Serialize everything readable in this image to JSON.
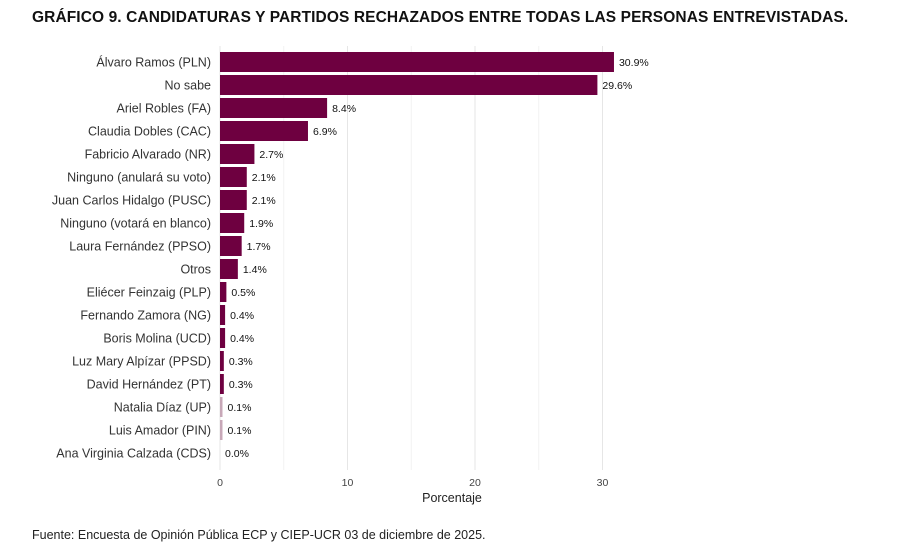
{
  "title": "GRÁFICO 9. CANDIDATURAS Y PARTIDOS RECHAZADOS ENTRE TODAS LAS PERSONAS ENTREVISTADAS.",
  "source": "Fuente: Encuesta de Opinión Pública ECP y CIEP-UCR 03 de diciembre de 2025.",
  "colors": {
    "bar": "#6e0040",
    "bar_light": "#c8a8b8",
    "grid": "#e6e6e6"
  },
  "chart_data": {
    "type": "bar",
    "orientation": "horizontal",
    "title": "GRÁFICO 9. CANDIDATURAS Y PARTIDOS RECHAZADOS ENTRE TODAS LAS PERSONAS ENTREVISTADAS.",
    "xlabel": "Porcentaje",
    "ylabel": "",
    "xlim": [
      0,
      32
    ],
    "xticks": [
      0,
      10,
      20,
      30
    ],
    "grid": true,
    "categories": [
      "Álvaro Ramos (PLN)",
      "No sabe",
      "Ariel Robles (FA)",
      "Claudia Dobles (CAC)",
      "Fabricio Alvarado (NR)",
      "Ninguno (anulará su voto)",
      "Juan Carlos Hidalgo (PUSC)",
      "Ninguno (votará en blanco)",
      "Laura Fernández (PPSO)",
      "Otros",
      "Eliécer Feinzaig (PLP)",
      "Fernando Zamora (NG)",
      "Boris Molina (UCD)",
      "Luz Mary Alpízar (PPSD)",
      "David Hernández (PT)",
      "Natalia Díaz (UP)",
      "Luis Amador (PIN)",
      "Ana Virginia Calzada (CDS)"
    ],
    "values": [
      30.9,
      29.6,
      8.4,
      6.9,
      2.7,
      2.1,
      2.1,
      1.9,
      1.7,
      1.4,
      0.5,
      0.4,
      0.4,
      0.3,
      0.3,
      0.1,
      0.1,
      0.0
    ],
    "value_labels": [
      "30.9%",
      "29.6%",
      "8.4%",
      "6.9%",
      "2.7%",
      "2.1%",
      "2.1%",
      "1.9%",
      "1.7%",
      "1.4%",
      "0.5%",
      "0.4%",
      "0.4%",
      "0.3%",
      "0.3%",
      "0.1%",
      "0.1%",
      "0.0%"
    ]
  }
}
